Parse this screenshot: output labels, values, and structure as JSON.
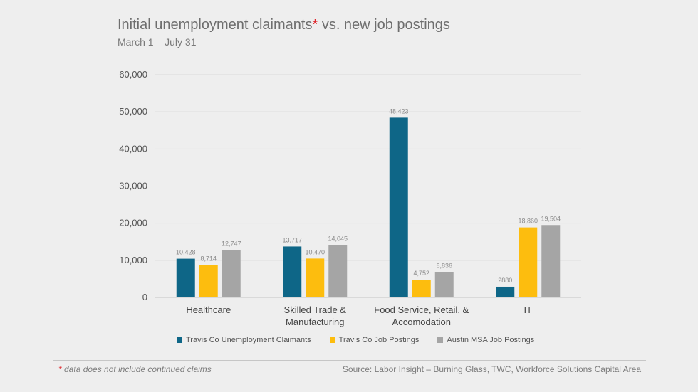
{
  "header": {
    "title_main": "Initial unemployment claimants",
    "title_asterisk": "*",
    "title_rest": " vs. new job postings",
    "subtitle": "March 1 – July 31"
  },
  "footer": {
    "footnote_asterisk": "*",
    "footnote_text": " data does not include continued claims",
    "source": "Source: Labor Insight – Burning Glass, TWC, Workforce Solutions Capital Area"
  },
  "chart_data": {
    "type": "bar",
    "title": "Initial unemployment claimants* vs. new job postings",
    "subtitle": "March 1 – July 31",
    "categories": [
      [
        "Healthcare"
      ],
      [
        "Skilled Trade &",
        "Manufacturing"
      ],
      [
        "Food Service, Retail, &",
        "Accomodation"
      ],
      [
        "IT"
      ]
    ],
    "series": [
      {
        "name": "Travis Co Unemployment Claimants",
        "color": "#0e6687",
        "values": [
          10428,
          13717,
          48423,
          2880
        ],
        "labels": [
          "10,428",
          "13,717",
          "48,423",
          "2880"
        ]
      },
      {
        "name": "Travis Co Job Postings",
        "color": "#fdbd0e",
        "values": [
          8714,
          10470,
          4752,
          18860
        ],
        "labels": [
          "8,714",
          "10,470",
          "4,752",
          "18,860"
        ]
      },
      {
        "name": "Austin MSA Job Postings",
        "color": "#a5a5a5",
        "values": [
          12747,
          14045,
          6836,
          19504
        ],
        "labels": [
          "12,747",
          "14,045",
          "6,836",
          "19,504"
        ]
      }
    ],
    "ylim": [
      0,
      60000
    ],
    "yticks": [
      0,
      10000,
      20000,
      30000,
      40000,
      50000,
      60000
    ],
    "ytick_labels": [
      "0",
      "10,000",
      "20,000",
      "30,000",
      "40,000",
      "50,000",
      "60,000"
    ],
    "grid": true,
    "legend_position": "bottom",
    "xlabel": "",
    "ylabel": ""
  }
}
